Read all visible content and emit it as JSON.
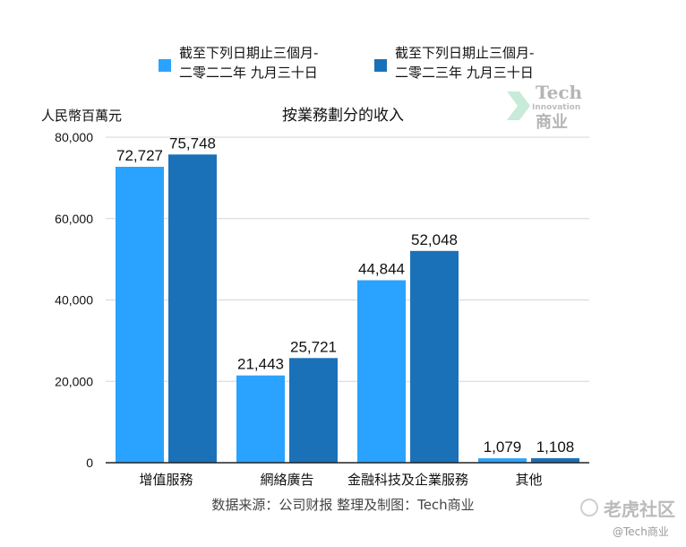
{
  "legend": [
    {
      "line1": "截至下列日期止三個月-",
      "line2": "二零二二年 九月三十日",
      "color": "#29a3ff"
    },
    {
      "line1": "截至下列日期止三個月-",
      "line2": "二零二三年 九月三十日",
      "color": "#1a71b8"
    }
  ],
  "unit_label": "人民幣百萬元",
  "source_note": "数据来源：公司财报 整理及制图：Tech商业",
  "watermarks": {
    "logo_word": "Tech",
    "logo_small": "Innovation",
    "logo_cn": "商业",
    "community": "老虎社区",
    "handle": "@Tech商业"
  },
  "chart_data": {
    "type": "bar",
    "title": "按業務劃分的收入",
    "ylabel": "人民幣百萬元",
    "xlabel": "",
    "categories": [
      "增值服務",
      "網絡廣告",
      "金融科技及企業服務",
      "其他"
    ],
    "series": [
      {
        "name": "截至下列日期止三個月-二零二二年 九月三十日",
        "values": [
          72727,
          21443,
          44844,
          1079
        ],
        "labels": [
          "72,727",
          "21,443",
          "44,844",
          "1,079"
        ],
        "color": "#29a3ff"
      },
      {
        "name": "截至下列日期止三個月-二零二三年 九月三十日",
        "values": [
          75748,
          25721,
          52048,
          1108
        ],
        "labels": [
          "75,748",
          "25,721",
          "52,048",
          "1,108"
        ],
        "color": "#1a71b8"
      }
    ],
    "ylim": [
      0,
      80000
    ],
    "yticks": [
      0,
      20000,
      40000,
      60000,
      80000
    ],
    "ytick_labels": [
      "0",
      "20,000",
      "40,000",
      "60,000",
      "80,000"
    ],
    "grid": true,
    "legend_position": "top"
  }
}
